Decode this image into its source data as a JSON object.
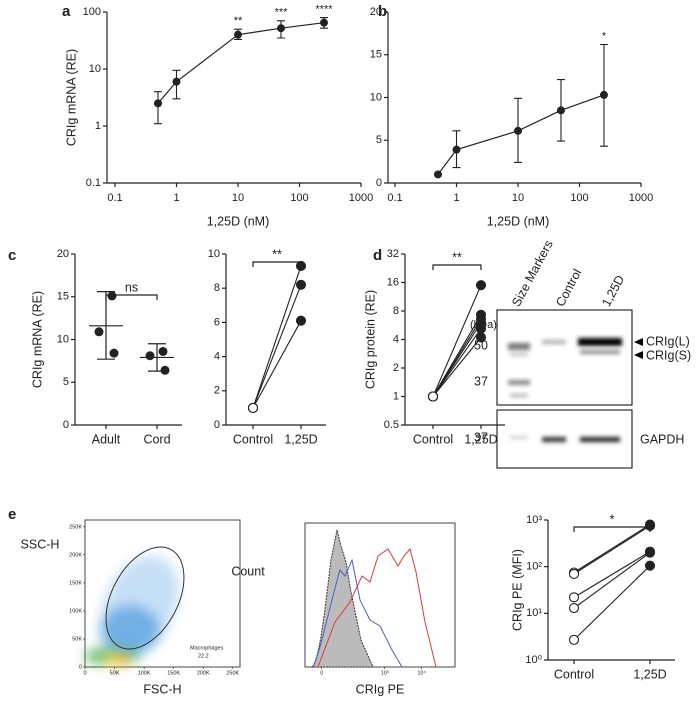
{
  "chart_data": [
    {
      "type": "line",
      "panel": "a",
      "xlabel": "1,25D (nM)",
      "ylabel": "CRIg mRNA (RE)",
      "x": [
        0.5,
        1,
        10,
        50,
        250
      ],
      "values": [
        2.5,
        6,
        40,
        52,
        65
      ],
      "lower": [
        1.1,
        3,
        33,
        35,
        52
      ],
      "upper": [
        4,
        9.5,
        50,
        70,
        80
      ],
      "annotations": [
        null,
        null,
        "**",
        "***",
        "****"
      ],
      "xscale": "log",
      "yscale": "log",
      "xlim": [
        0.1,
        1000
      ],
      "xticks": [
        0.1,
        1,
        10,
        100,
        1000
      ],
      "ylim": [
        0.1,
        100
      ],
      "yticks": [
        0.1,
        1,
        10,
        100
      ],
      "color": "#222222"
    },
    {
      "type": "line",
      "panel": "b",
      "xlabel": "1,25D (nM)",
      "x": [
        0.5,
        1,
        10,
        50,
        250
      ],
      "values": [
        1.0,
        3.9,
        6.1,
        8.5,
        10.3
      ],
      "lower": [
        null,
        1.8,
        2.4,
        4.9,
        4.3
      ],
      "upper": [
        null,
        6.1,
        9.9,
        12.1,
        16.2
      ],
      "annotations": [
        null,
        null,
        null,
        null,
        "*"
      ],
      "xscale": "log",
      "xlim": [
        0.1,
        1000
      ],
      "xticks": [
        0.1,
        1,
        10,
        100,
        1000
      ],
      "ylim": [
        0,
        20
      ],
      "yticks": [
        0,
        5,
        10,
        15,
        20
      ],
      "color": "#222222"
    },
    {
      "type": "dot",
      "panel": "c",
      "ylabel": "CRIg mRNA (RE)",
      "categories": [
        "Adult",
        "Cord"
      ],
      "points": [
        [
          15.1,
          10.9,
          8.4
        ],
        [
          8.6,
          8.1,
          6.4
        ]
      ],
      "means": [
        11.6,
        7.9
      ],
      "lower": [
        7.7,
        6.3
      ],
      "upper": [
        15.6,
        9.5
      ],
      "annotation": "ns",
      "ylim": [
        0,
        20
      ],
      "yticks": [
        0,
        5,
        10,
        15,
        20
      ],
      "color": "#222222"
    },
    {
      "type": "paired",
      "categories": [
        "Control",
        "1,25D"
      ],
      "pairs": [
        [
          1,
          9.3
        ],
        [
          1,
          8.2
        ],
        [
          1,
          6.1
        ]
      ],
      "annotation": "**",
      "ylim": [
        0,
        10
      ],
      "yticks": [
        0,
        2,
        4,
        6,
        8,
        10
      ],
      "color": "#222222"
    },
    {
      "type": "paired",
      "panel": "d",
      "ylabel": "CRIg protein (RE)",
      "categories": [
        "Control",
        "1,25D"
      ],
      "pairs": [
        [
          1,
          15
        ],
        [
          1,
          7.3
        ],
        [
          1,
          6.6
        ],
        [
          1,
          6
        ],
        [
          1,
          5.2
        ],
        [
          1,
          4.2
        ]
      ],
      "annotation": "**",
      "yscale": "log",
      "ylim": [
        0.5,
        32
      ],
      "yticks": [
        0.5,
        1,
        2,
        4,
        8,
        16,
        32
      ],
      "color": "#222222"
    },
    {
      "type": "blot",
      "lanes": [
        "Size Markers",
        "Control",
        "1,25D"
      ],
      "unit": "(kDa)",
      "upper_markers": [
        50,
        37
      ],
      "lower_markers": [
        37
      ],
      "bands": [
        "CRIg(L)",
        "CRIg(S)"
      ],
      "loading": "GAPDH"
    },
    {
      "type": "density",
      "panel": "e",
      "xlabel": "FSC-H",
      "ylabel": "SSC-H",
      "gate": "Macrophages",
      "gate_value": 22.2,
      "xlim": [
        0,
        262144
      ],
      "xticks": [
        0,
        {
          "value": 50000,
          "label": "50K"
        },
        {
          "value": 100000,
          "label": "100K"
        },
        {
          "value": 150000,
          "label": "150K"
        },
        {
          "value": 200000,
          "label": "200K"
        },
        {
          "value": 250000,
          "label": "250K"
        }
      ],
      "ylim": [
        0,
        262144
      ],
      "yticks": [
        0,
        {
          "value": 50000,
          "label": "50K"
        },
        {
          "value": 100000,
          "label": "100K"
        },
        {
          "value": 150000,
          "label": "150K"
        },
        {
          "value": 200000,
          "label": "200K"
        },
        {
          "value": 250000,
          "label": "250K"
        }
      ]
    },
    {
      "type": "curves",
      "xlabel": "CRIg PE",
      "ylabel": "Count",
      "xscale": "logicle",
      "xlim": [
        -50,
        80000
      ],
      "xticks": [
        0,
        {
          "value": 1000,
          "label": "10³"
        },
        {
          "value": 10000,
          "label": "10⁴"
        }
      ]
    },
    {
      "type": "paired",
      "ylabel": "CRIg PE (MFI)",
      "categories": [
        "Control",
        "1,25D"
      ],
      "pairs": [
        [
          75,
          800
        ],
        [
          70,
          750
        ],
        [
          22,
          210
        ],
        [
          13,
          200
        ],
        [
          2.7,
          105
        ]
      ],
      "annotation": "*",
      "yscale": "log",
      "ylim": [
        1,
        1000
      ],
      "yticks": [
        {
          "value": 1,
          "label": "10⁰"
        },
        {
          "value": 10,
          "label": "10¹"
        },
        {
          "value": 100,
          "label": "10²"
        },
        {
          "value": 1000,
          "label": "10³"
        }
      ],
      "color": "#222222"
    }
  ]
}
